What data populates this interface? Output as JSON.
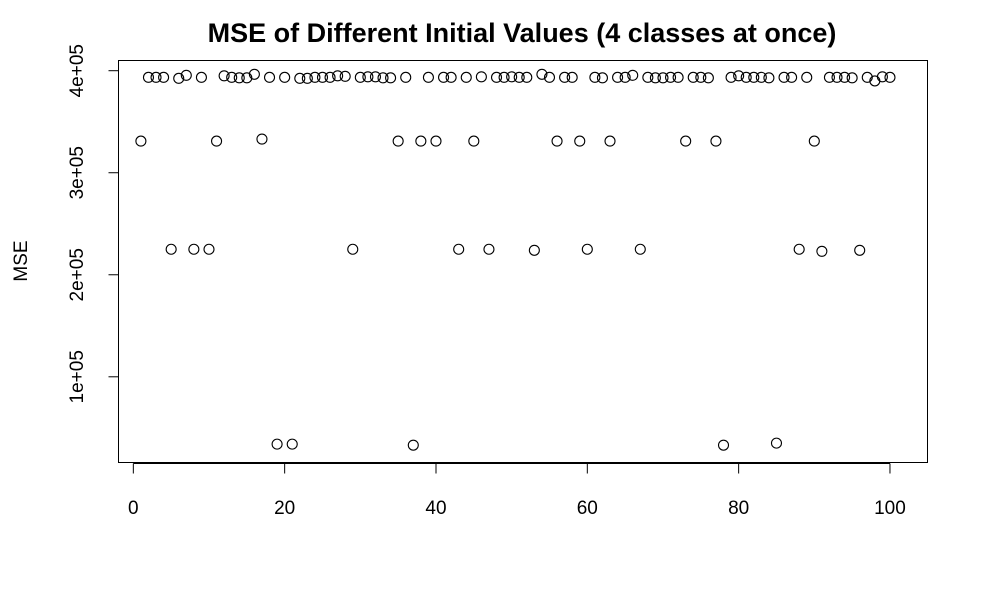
{
  "chart_data": {
    "type": "scatter",
    "title": "MSE of Different Initial Values (4 classes at once)",
    "xlabel": "",
    "ylabel": "MSE",
    "xlim": [
      -1.96,
      104.96
    ],
    "ylim": [
      16000,
      410000
    ],
    "x_ticks": [
      0,
      20,
      40,
      60,
      80,
      100
    ],
    "x_tick_labels": [
      "0",
      "20",
      "40",
      "60",
      "80",
      "100"
    ],
    "y_ticks": [
      100000,
      200000,
      300000,
      400000
    ],
    "y_tick_labels": [
      "1e+05",
      "2e+05",
      "3e+05",
      "4e+05"
    ],
    "grid": false,
    "marker": "open-circle",
    "series": [
      {
        "x": [
          1,
          2,
          3,
          4,
          5,
          6,
          7,
          8,
          9,
          10,
          11,
          12,
          13,
          14,
          15,
          16,
          17,
          18,
          19,
          20,
          21,
          22,
          23,
          24,
          25,
          26,
          27,
          28,
          29,
          30,
          31,
          32,
          33,
          34,
          35,
          36,
          37,
          38,
          39,
          40,
          41,
          42,
          43,
          44,
          45,
          46,
          47,
          48,
          49,
          50,
          51,
          52,
          53,
          54,
          55,
          56,
          57,
          58,
          59,
          60,
          61,
          62,
          63,
          64,
          65,
          66,
          67,
          68,
          69,
          70,
          71,
          72,
          73,
          74,
          75,
          76,
          77,
          78,
          79,
          80,
          81,
          82,
          83,
          84,
          85,
          86,
          87,
          88,
          89,
          90,
          91,
          92,
          93,
          94,
          95,
          96,
          97,
          98,
          99,
          100
        ],
        "y": [
          331000,
          393500,
          393500,
          393500,
          225000,
          392500,
          395500,
          225000,
          393500,
          225000,
          331000,
          395000,
          393500,
          393000,
          393000,
          396500,
          333000,
          393500,
          34000,
          393500,
          34000,
          392500,
          392500,
          393500,
          393500,
          393500,
          395000,
          394500,
          225000,
          393500,
          394000,
          394000,
          393000,
          393000,
          331000,
          393500,
          33000,
          331000,
          393500,
          331000,
          393500,
          393500,
          225000,
          393500,
          331000,
          394000,
          225000,
          393500,
          393500,
          394000,
          393500,
          393500,
          224000,
          396500,
          393500,
          331000,
          393500,
          393500,
          331000,
          225000,
          393500,
          393000,
          331000,
          393500,
          393500,
          395500,
          225000,
          393500,
          393000,
          393000,
          393500,
          393500,
          331000,
          393500,
          393500,
          393000,
          331000,
          33000,
          393500,
          395000,
          393500,
          393500,
          393500,
          393000,
          35000,
          393500,
          393500,
          225000,
          393500,
          331000,
          223000,
          393500,
          393500,
          393500,
          393000,
          224000,
          393500,
          390000,
          394000,
          393500
        ]
      }
    ]
  }
}
